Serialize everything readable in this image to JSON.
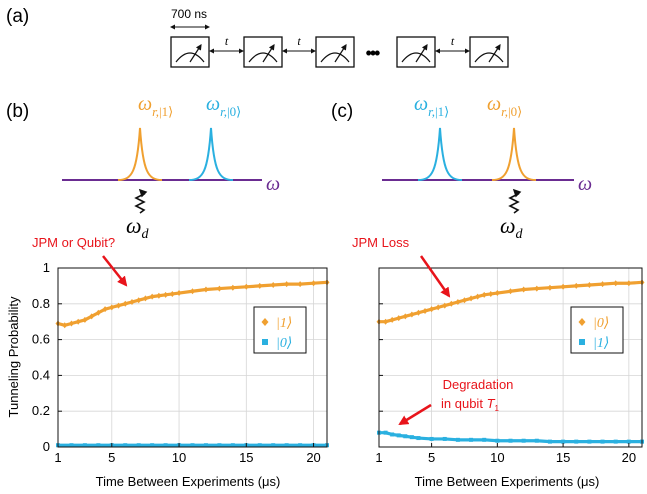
{
  "panel_labels": {
    "a": "(a)",
    "b": "(b)",
    "c": "(c)"
  },
  "sequence": {
    "pulse_duration": "700 ns",
    "gap_label": "t",
    "ellipsis": "•••"
  },
  "spectrum": {
    "axis_symbol": "ω",
    "drive_symbol": "ω",
    "drive_subscript": "d",
    "peak_symbol": "ω",
    "peak_sub_prefix": "r,",
    "colors": {
      "axis": "#6a2c91",
      "orange": "#f0a030",
      "blue": "#2ab0e0"
    },
    "b": {
      "peak_left": "|1⟩",
      "peak_right": "|0⟩",
      "left_color": "#f0a030",
      "right_color": "#2ab0e0"
    },
    "c": {
      "peak_left": "|1⟩",
      "peak_right": "|0⟩",
      "left_color": "#2ab0e0",
      "right_color": "#f0a030"
    }
  },
  "annotations": {
    "b_arrow_text": "JPM or Qubit?",
    "c_arrow_text": "JPM Loss",
    "c_degradation_line1": "Degradation",
    "c_degradation_line2": "in qubit ",
    "c_degradation_T": "T",
    "c_degradation_sub": "1",
    "color": "#e8141b"
  },
  "chart_data": [
    {
      "type": "scatter",
      "panel": "b",
      "xlabel": "Time Between Experiments (μs)",
      "ylabel": "Tunneling Probability",
      "xlim": [
        1,
        21
      ],
      "ylim": [
        0,
        1
      ],
      "xticks": [
        1,
        5,
        10,
        15,
        20
      ],
      "yticks": [
        0,
        0.2,
        0.4,
        0.6,
        0.8,
        1
      ],
      "xtick_labels": [
        "1",
        "5",
        "10",
        "15",
        "20"
      ],
      "ytick_labels": [
        "0",
        "0.2",
        "0.4",
        "0.6",
        "0.8",
        "1"
      ],
      "grid": true,
      "legend_position": "right",
      "series": [
        {
          "name": "|1⟩",
          "color": "#f0a030",
          "marker": "diamond",
          "x": [
            1,
            1.5,
            2,
            2.5,
            3,
            3.5,
            4,
            4.5,
            5,
            5.5,
            6,
            6.5,
            7,
            7.5,
            8,
            8.5,
            9,
            9.5,
            10,
            11,
            12,
            13,
            14,
            15,
            16,
            17,
            18,
            19,
            20,
            21
          ],
          "y": [
            0.69,
            0.68,
            0.69,
            0.7,
            0.71,
            0.73,
            0.75,
            0.77,
            0.78,
            0.79,
            0.8,
            0.81,
            0.82,
            0.83,
            0.84,
            0.845,
            0.85,
            0.855,
            0.86,
            0.87,
            0.88,
            0.885,
            0.89,
            0.895,
            0.9,
            0.905,
            0.91,
            0.91,
            0.915,
            0.92
          ]
        },
        {
          "name": "|0⟩",
          "color": "#2ab0e0",
          "marker": "square",
          "x": [
            1,
            2,
            3,
            4,
            5,
            6,
            7,
            8,
            9,
            10,
            11,
            12,
            13,
            14,
            15,
            16,
            17,
            18,
            19,
            20,
            21
          ],
          "y": [
            0.01,
            0.01,
            0.01,
            0.01,
            0.01,
            0.01,
            0.01,
            0.01,
            0.01,
            0.01,
            0.01,
            0.01,
            0.01,
            0.01,
            0.01,
            0.01,
            0.01,
            0.01,
            0.01,
            0.01,
            0.01
          ]
        }
      ]
    },
    {
      "type": "scatter",
      "panel": "c",
      "xlabel": "Time Between Experiments (μs)",
      "ylabel": "",
      "xlim": [
        1,
        21
      ],
      "ylim": [
        0,
        1
      ],
      "xticks": [
        1,
        5,
        10,
        15,
        20
      ],
      "yticks": [
        0,
        0.2,
        0.4,
        0.6,
        0.8,
        1
      ],
      "xtick_labels": [
        "1",
        "5",
        "10",
        "15",
        "20"
      ],
      "grid": true,
      "legend_position": "right",
      "series": [
        {
          "name": "|0⟩",
          "color": "#f0a030",
          "marker": "diamond",
          "x": [
            1,
            1.5,
            2,
            2.5,
            3,
            3.5,
            4,
            4.5,
            5,
            5.5,
            6,
            6.5,
            7,
            7.5,
            8,
            8.5,
            9,
            9.5,
            10,
            11,
            12,
            13,
            14,
            15,
            16,
            17,
            18,
            19,
            20,
            21
          ],
          "y": [
            0.7,
            0.7,
            0.71,
            0.72,
            0.73,
            0.74,
            0.75,
            0.76,
            0.77,
            0.78,
            0.79,
            0.8,
            0.81,
            0.82,
            0.83,
            0.84,
            0.85,
            0.855,
            0.86,
            0.87,
            0.88,
            0.885,
            0.89,
            0.895,
            0.9,
            0.905,
            0.91,
            0.915,
            0.915,
            0.92
          ]
        },
        {
          "name": "|1⟩",
          "color": "#2ab0e0",
          "marker": "square",
          "x": [
            1,
            1.5,
            2,
            2.5,
            3,
            3.5,
            4,
            5,
            6,
            7,
            8,
            9,
            10,
            11,
            12,
            13,
            14,
            15,
            16,
            17,
            18,
            19,
            20,
            21
          ],
          "y": [
            0.08,
            0.08,
            0.07,
            0.065,
            0.06,
            0.055,
            0.05,
            0.045,
            0.045,
            0.04,
            0.04,
            0.04,
            0.035,
            0.035,
            0.035,
            0.035,
            0.03,
            0.03,
            0.03,
            0.03,
            0.03,
            0.03,
            0.03,
            0.03
          ]
        }
      ]
    }
  ]
}
